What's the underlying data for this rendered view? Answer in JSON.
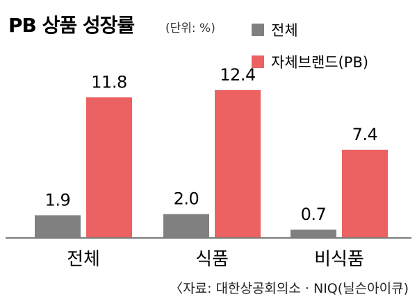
{
  "title": "PB 상품 성장률",
  "unit": "(단위: %)",
  "source": "〈자료: 대한상공회의소 · NIQ(닐슨아이큐)",
  "colors": {
    "overall": "#808080",
    "pb": "#EC6161",
    "axis": "#7a7a7a"
  },
  "chart_data": {
    "type": "bar",
    "title": "PB 상품 성장률",
    "categories": [
      "전체",
      "식품",
      "비식품"
    ],
    "series": [
      {
        "name": "전체",
        "values": [
          1.9,
          2.0,
          0.7
        ],
        "labels": [
          "1.9",
          "2.0",
          "0.7"
        ]
      },
      {
        "name": "자체브랜드(PB)",
        "values": [
          11.8,
          12.4,
          7.4
        ],
        "labels": [
          "11.8",
          "12.4",
          "7.4"
        ]
      }
    ],
    "xlabel": "",
    "ylabel": "",
    "ylim": [
      0,
      12.4
    ],
    "grid": false,
    "legend": "top-right"
  }
}
